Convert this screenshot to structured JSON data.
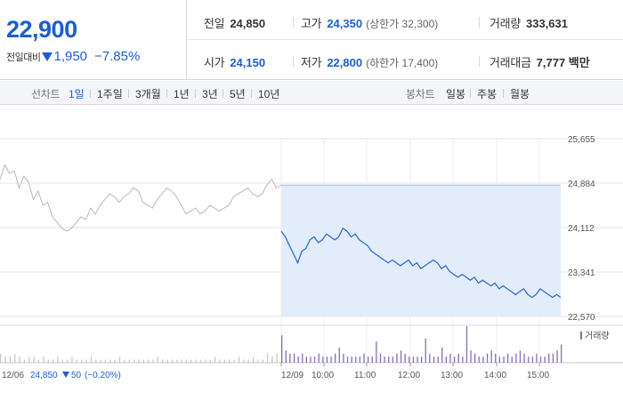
{
  "header": {
    "price": "22,900",
    "change_label": "전일대비",
    "change_amount": "1,950",
    "change_rate": "−7.85%",
    "stats": {
      "prev": {
        "label": "전일",
        "value": "24,850"
      },
      "high": {
        "label": "고가",
        "value": "24,350",
        "note": "(상한가 32,300)"
      },
      "volume": {
        "label": "거래량",
        "value": "333,631"
      },
      "open": {
        "label": "시가",
        "value": "24,150"
      },
      "low": {
        "label": "저가",
        "value": "22,800",
        "note": "(하한가 17,400)"
      },
      "amount": {
        "label": "거래대금",
        "value": "7,777 백만"
      }
    }
  },
  "toolbar": {
    "line_label": "선차트",
    "line_periods": [
      {
        "label": "1일",
        "active": true
      },
      {
        "label": "1주일",
        "active": false
      },
      {
        "label": "3개월",
        "active": false
      },
      {
        "label": "1년",
        "active": false
      },
      {
        "label": "3년",
        "active": false
      },
      {
        "label": "5년",
        "active": false
      },
      {
        "label": "10년",
        "active": false
      }
    ],
    "candle_label": "봉차트",
    "candle_periods": [
      {
        "label": "일봉"
      },
      {
        "label": "주봉"
      },
      {
        "label": "월봉"
      }
    ]
  },
  "chart_data": {
    "type": "line",
    "ylim": [
      22570,
      25655
    ],
    "y_ticks": [
      "25,655",
      "24,884",
      "24,112",
      "23,341",
      "22,570"
    ],
    "x_ticks": [
      "12/09",
      "10:00",
      "11:00",
      "12:00",
      "13:00",
      "14:00",
      "15:00"
    ],
    "volume_legend": "거래량",
    "footer_prev_day": {
      "date": "12/06",
      "close": "24,850",
      "change": "50",
      "rate": "(−0.20%)"
    },
    "reference_price": 24850,
    "colors": {
      "today_line": "#2f6fd0",
      "prev_line": "#b8b8b8",
      "fill": "#e3ecfa",
      "volume_bar": "#8a6cb8",
      "accent_blue": "#1b5fd6"
    },
    "series": [
      {
        "name": "12/06",
        "values": [
          24950,
          25200,
          25050,
          25100,
          24800,
          25000,
          24900,
          24600,
          24750,
          24500,
          24550,
          24300,
          24200,
          24100,
          24050,
          24100,
          24200,
          24300,
          24250,
          24450,
          24350,
          24500,
          24600,
          24700,
          24650,
          24550,
          24650,
          24700,
          24800,
          24750,
          24550,
          24500,
          24450,
          24600,
          24700,
          24800,
          24750,
          24650,
          24500,
          24350,
          24400,
          24450,
          24350,
          24400,
          24500,
          24450,
          24400,
          24450,
          24500,
          24650,
          24700,
          24750,
          24800,
          24700,
          24650,
          24700,
          24850,
          24950,
          24800,
          24850
        ]
      },
      {
        "name": "12/09",
        "values": [
          24050,
          23950,
          23800,
          23650,
          23500,
          23700,
          23750,
          23900,
          23950,
          23850,
          23900,
          24000,
          23950,
          23900,
          23950,
          24100,
          24050,
          23950,
          24000,
          23900,
          23850,
          23800,
          23700,
          23650,
          23600,
          23550,
          23500,
          23550,
          23500,
          23450,
          23500,
          23550,
          23450,
          23500,
          23400,
          23450,
          23500,
          23550,
          23500,
          23400,
          23450,
          23350,
          23300,
          23250,
          23300,
          23250,
          23200,
          23250,
          23150,
          23200,
          23150,
          23100,
          23150,
          23050,
          23100,
          23050,
          23000,
          22950,
          23000,
          23050,
          22950,
          22900,
          22950,
          23050,
          23000,
          22950,
          22900,
          22950,
          22900
        ]
      }
    ],
    "volume_prev": [
      3,
      2,
      2,
      3,
      2,
      1,
      2,
      2,
      1,
      2,
      1,
      1,
      2,
      1,
      1,
      2,
      1,
      1,
      1,
      2,
      1,
      1,
      1,
      1,
      1,
      2,
      1,
      1,
      1,
      1,
      1,
      1,
      1,
      2,
      1,
      1,
      1,
      1,
      1,
      1,
      1,
      1,
      1,
      1,
      1,
      2,
      1,
      1,
      1,
      1,
      2,
      1,
      1,
      2,
      1,
      1,
      3,
      2,
      3,
      8
    ],
    "volume_today": [
      9,
      4,
      3,
      3,
      2,
      3,
      2,
      2,
      2,
      3,
      2,
      2,
      2,
      3,
      5,
      3,
      2,
      2,
      2,
      2,
      3,
      2,
      2,
      7,
      3,
      2,
      2,
      2,
      3,
      4,
      3,
      2,
      2,
      2,
      2,
      8,
      3,
      2,
      2,
      5,
      2,
      3,
      2,
      3,
      2,
      12,
      4,
      3,
      2,
      2,
      3,
      4,
      3,
      2,
      2,
      3,
      2,
      3,
      4,
      3,
      2,
      2,
      3,
      2,
      2,
      3,
      3,
      4,
      6
    ]
  }
}
